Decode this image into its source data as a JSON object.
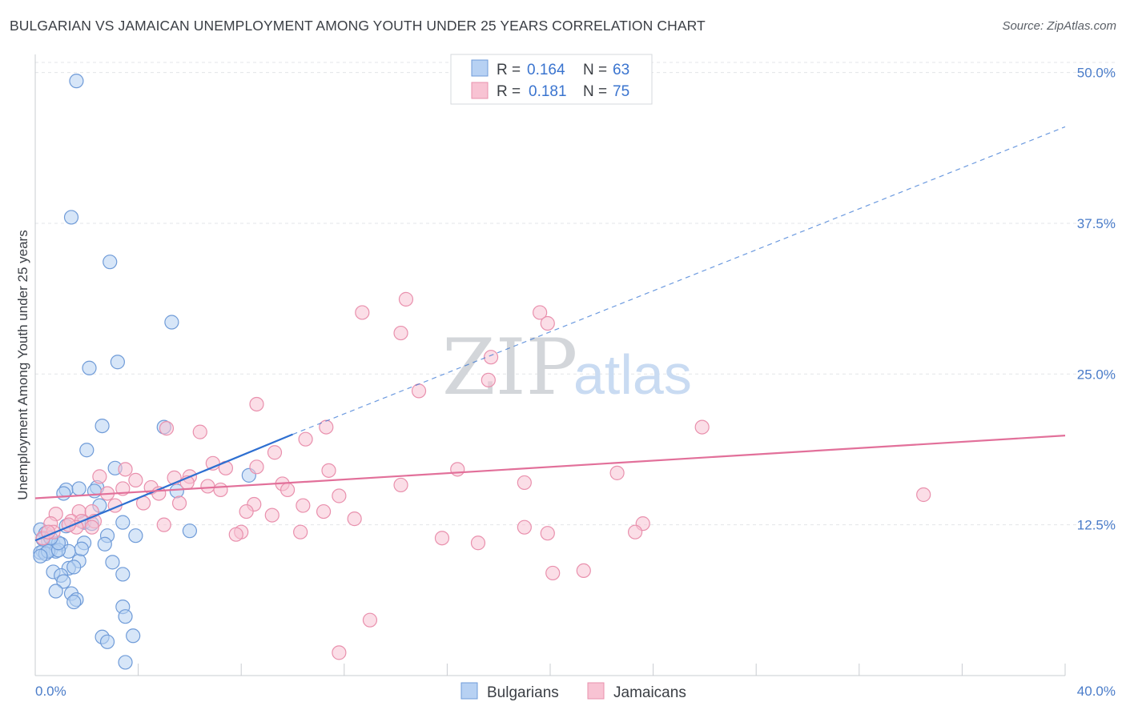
{
  "title": "BULGARIAN VS JAMAICAN UNEMPLOYMENT AMONG YOUTH UNDER 25 YEARS CORRELATION CHART",
  "source": "Source: ZipAtlas.com",
  "watermark": {
    "zip": "ZIP",
    "atlas": "atlas"
  },
  "colors": {
    "bulgarians_fill": "#b7d1f3",
    "bulgarians_stroke": "#6f9bd8",
    "bulgarians_line": "#2e6fd1",
    "jamaicans_fill": "#f8c3d3",
    "jamaicans_stroke": "#e990ad",
    "jamaicans_line": "#e2709a",
    "grid": "#e3e5e8",
    "tick_text": "#4a7cc9"
  },
  "legend": {
    "rows": [
      {
        "r_label": "R =",
        "r_value": "0.164",
        "n_label": "N =",
        "n_value": "63"
      },
      {
        "r_label": "R =",
        "r_value": "0.181",
        "n_label": "N =",
        "n_value": "75"
      }
    ],
    "bottom": [
      "Bulgarians",
      "Jamaicans"
    ]
  },
  "chart_data": {
    "type": "scatter",
    "title": "BULGARIAN VS JAMAICAN UNEMPLOYMENT AMONG YOUTH UNDER 25 YEARS CORRELATION CHART",
    "xlabel": "",
    "ylabel": "Unemployment Among Youth under 25 years",
    "xlim": [
      0,
      40
    ],
    "ylim": [
      0,
      51.5
    ],
    "x_tick_labels": [
      "0.0%",
      "40.0%"
    ],
    "y_ticks": [
      12.5,
      25.0,
      37.5,
      50.0
    ],
    "y_tick_labels": [
      "12.5%",
      "25.0%",
      "37.5%",
      "50.0%"
    ],
    "grid": true,
    "legend_position": "top-center",
    "series": [
      {
        "name": "Bulgarians",
        "r": 0.164,
        "n": 63,
        "trend": {
          "x0": 0,
          "y0": 11.2,
          "x1": 10.0,
          "y1": 20.0,
          "dashed_to_x": 40,
          "dashed_to_y": 45.5
        },
        "points": [
          [
            1.6,
            49.3
          ],
          [
            1.4,
            38.0
          ],
          [
            2.9,
            34.3
          ],
          [
            5.3,
            29.3
          ],
          [
            2.1,
            25.5
          ],
          [
            3.2,
            26.0
          ],
          [
            2.6,
            20.7
          ],
          [
            5.0,
            20.6
          ],
          [
            2.0,
            18.7
          ],
          [
            3.1,
            17.2
          ],
          [
            8.3,
            16.6
          ],
          [
            1.2,
            15.4
          ],
          [
            1.7,
            15.5
          ],
          [
            2.4,
            15.6
          ],
          [
            2.3,
            15.3
          ],
          [
            5.5,
            15.3
          ],
          [
            1.1,
            15.1
          ],
          [
            2.5,
            14.1
          ],
          [
            3.4,
            12.7
          ],
          [
            1.9,
            12.7
          ],
          [
            6.0,
            12.0
          ],
          [
            0.2,
            12.1
          ],
          [
            0.4,
            11.8
          ],
          [
            2.8,
            11.6
          ],
          [
            3.9,
            11.6
          ],
          [
            0.5,
            11.2
          ],
          [
            0.7,
            10.9
          ],
          [
            1.0,
            10.9
          ],
          [
            1.9,
            11.0
          ],
          [
            0.3,
            11.3
          ],
          [
            2.7,
            10.9
          ],
          [
            0.3,
            10.3
          ],
          [
            0.6,
            10.4
          ],
          [
            0.8,
            10.3
          ],
          [
            0.2,
            10.2
          ],
          [
            0.4,
            10.1
          ],
          [
            1.3,
            10.3
          ],
          [
            0.5,
            10.3
          ],
          [
            0.9,
            10.4
          ],
          [
            0.2,
            9.9
          ],
          [
            1.7,
            9.5
          ],
          [
            3.0,
            9.4
          ],
          [
            0.7,
            8.6
          ],
          [
            1.3,
            8.9
          ],
          [
            3.4,
            8.4
          ],
          [
            1.0,
            8.3
          ],
          [
            1.1,
            7.8
          ],
          [
            0.8,
            7.0
          ],
          [
            1.4,
            6.8
          ],
          [
            1.6,
            6.3
          ],
          [
            1.5,
            6.1
          ],
          [
            3.4,
            5.7
          ],
          [
            3.5,
            4.9
          ],
          [
            2.6,
            3.2
          ],
          [
            2.8,
            2.8
          ],
          [
            3.8,
            3.3
          ],
          [
            3.5,
            1.1
          ],
          [
            1.2,
            12.4
          ],
          [
            0.9,
            11.0
          ],
          [
            1.5,
            9.0
          ],
          [
            2.2,
            12.6
          ],
          [
            0.6,
            11.4
          ],
          [
            1.8,
            10.5
          ]
        ]
      },
      {
        "name": "Jamaicans",
        "r": 0.181,
        "n": 75,
        "trend": {
          "x0": 0,
          "y0": 14.7,
          "x1": 40,
          "y1": 19.9
        },
        "points": [
          [
            14.4,
            31.2
          ],
          [
            12.7,
            30.1
          ],
          [
            19.6,
            30.1
          ],
          [
            19.9,
            29.2
          ],
          [
            14.2,
            28.4
          ],
          [
            17.7,
            26.4
          ],
          [
            17.6,
            24.5
          ],
          [
            14.9,
            23.6
          ],
          [
            8.6,
            22.5
          ],
          [
            25.9,
            20.6
          ],
          [
            11.3,
            20.6
          ],
          [
            5.1,
            20.5
          ],
          [
            6.4,
            20.2
          ],
          [
            10.5,
            19.6
          ],
          [
            9.3,
            18.5
          ],
          [
            6.9,
            17.6
          ],
          [
            7.4,
            17.2
          ],
          [
            8.6,
            17.3
          ],
          [
            3.5,
            17.1
          ],
          [
            11.4,
            17.0
          ],
          [
            16.4,
            17.1
          ],
          [
            22.6,
            16.8
          ],
          [
            2.5,
            16.5
          ],
          [
            3.9,
            16.2
          ],
          [
            5.4,
            16.4
          ],
          [
            6.0,
            16.5
          ],
          [
            5.9,
            16.0
          ],
          [
            4.5,
            15.6
          ],
          [
            6.7,
            15.7
          ],
          [
            7.2,
            15.4
          ],
          [
            9.6,
            15.9
          ],
          [
            14.2,
            15.8
          ],
          [
            19.0,
            16.0
          ],
          [
            3.4,
            15.5
          ],
          [
            4.8,
            15.1
          ],
          [
            2.8,
            15.1
          ],
          [
            9.8,
            15.4
          ],
          [
            11.8,
            14.9
          ],
          [
            4.2,
            14.3
          ],
          [
            5.6,
            14.3
          ],
          [
            8.5,
            14.2
          ],
          [
            10.4,
            14.1
          ],
          [
            3.1,
            14.1
          ],
          [
            34.5,
            15.0
          ],
          [
            1.7,
            13.6
          ],
          [
            2.2,
            13.6
          ],
          [
            0.8,
            13.4
          ],
          [
            8.2,
            13.6
          ],
          [
            11.2,
            13.6
          ],
          [
            9.2,
            13.3
          ],
          [
            12.4,
            13.0
          ],
          [
            1.4,
            12.8
          ],
          [
            0.6,
            12.6
          ],
          [
            1.8,
            12.8
          ],
          [
            2.3,
            12.8
          ],
          [
            23.6,
            12.6
          ],
          [
            5.0,
            12.5
          ],
          [
            0.7,
            11.9
          ],
          [
            1.6,
            12.3
          ],
          [
            2.2,
            12.3
          ],
          [
            19.0,
            12.3
          ],
          [
            8.0,
            11.9
          ],
          [
            7.8,
            11.7
          ],
          [
            10.3,
            11.9
          ],
          [
            19.9,
            11.8
          ],
          [
            23.3,
            11.9
          ],
          [
            15.8,
            11.4
          ],
          [
            17.2,
            11.0
          ],
          [
            0.3,
            11.4
          ],
          [
            21.3,
            8.7
          ],
          [
            20.1,
            8.5
          ],
          [
            13.0,
            4.6
          ],
          [
            11.8,
            1.9
          ],
          [
            0.5,
            11.9
          ],
          [
            1.3,
            12.5
          ]
        ]
      }
    ]
  }
}
